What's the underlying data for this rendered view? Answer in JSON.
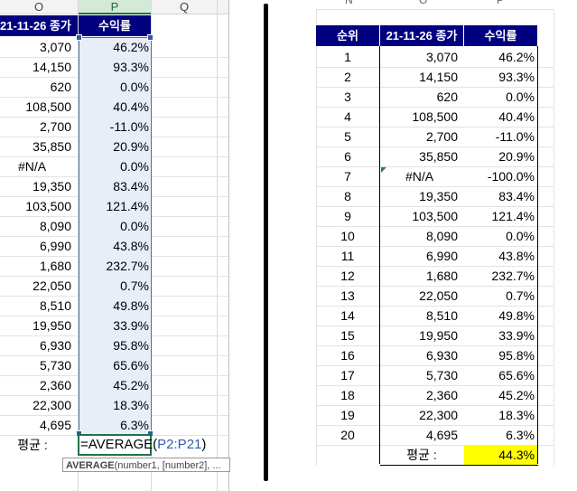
{
  "left_sheet": {
    "columns": [
      "O",
      "P",
      "Q"
    ],
    "header": {
      "close": "21-11-26 종가",
      "return": "수익률"
    },
    "close_values": [
      "3,070",
      "14,150",
      "620",
      "108,500",
      "2,700",
      "35,850",
      "#N/A",
      "19,350",
      "103,500",
      "8,090",
      "6,990",
      "1,680",
      "22,050",
      "8,510",
      "19,950",
      "6,930",
      "5,730",
      "2,360",
      "22,300",
      "4,695"
    ],
    "return_values": [
      "46.2%",
      "93.3%",
      "0.0%",
      "40.4%",
      "-11.0%",
      "20.9%",
      "0.0%",
      "83.4%",
      "121.4%",
      "0.0%",
      "43.8%",
      "232.7%",
      "0.7%",
      "49.8%",
      "33.9%",
      "95.8%",
      "65.6%",
      "45.2%",
      "18.3%",
      "6.3%"
    ],
    "avg_label": "평균 :",
    "formula": {
      "prefix": "=AVERAGE(",
      "range": "P2:P21",
      "suffix": ")"
    },
    "tooltip": {
      "func": "AVERAGE",
      "args": "(number1, [number2], ..."
    }
  },
  "right_table": {
    "partial_column_letters": [
      "N",
      "O",
      "P"
    ],
    "header": {
      "rank": "순위",
      "close": "21-11-26 종가",
      "return": "수익률"
    },
    "ranks": [
      "1",
      "2",
      "3",
      "4",
      "5",
      "6",
      "7",
      "8",
      "9",
      "10",
      "11",
      "12",
      "13",
      "14",
      "15",
      "16",
      "17",
      "18",
      "19",
      "20"
    ],
    "close_values": [
      "3,070",
      "14,150",
      "620",
      "108,500",
      "2,700",
      "35,850",
      "#N/A",
      "19,350",
      "103,500",
      "8,090",
      "6,990",
      "1,680",
      "22,050",
      "8,510",
      "19,950",
      "6,930",
      "5,730",
      "2,360",
      "22,300",
      "4,695"
    ],
    "return_values": [
      "46.2%",
      "93.3%",
      "0.0%",
      "40.4%",
      "-11.0%",
      "20.9%",
      "-100.0%",
      "83.4%",
      "121.4%",
      "0.0%",
      "43.8%",
      "232.7%",
      "0.7%",
      "49.8%",
      "33.9%",
      "95.8%",
      "65.6%",
      "45.2%",
      "18.3%",
      "6.3%"
    ],
    "avg_label": "평균 :",
    "avg_value": "44.3%",
    "colors": {
      "header_bg": "#000080",
      "highlight": "#ffff00",
      "error_marker": "#1e8a3c"
    }
  }
}
